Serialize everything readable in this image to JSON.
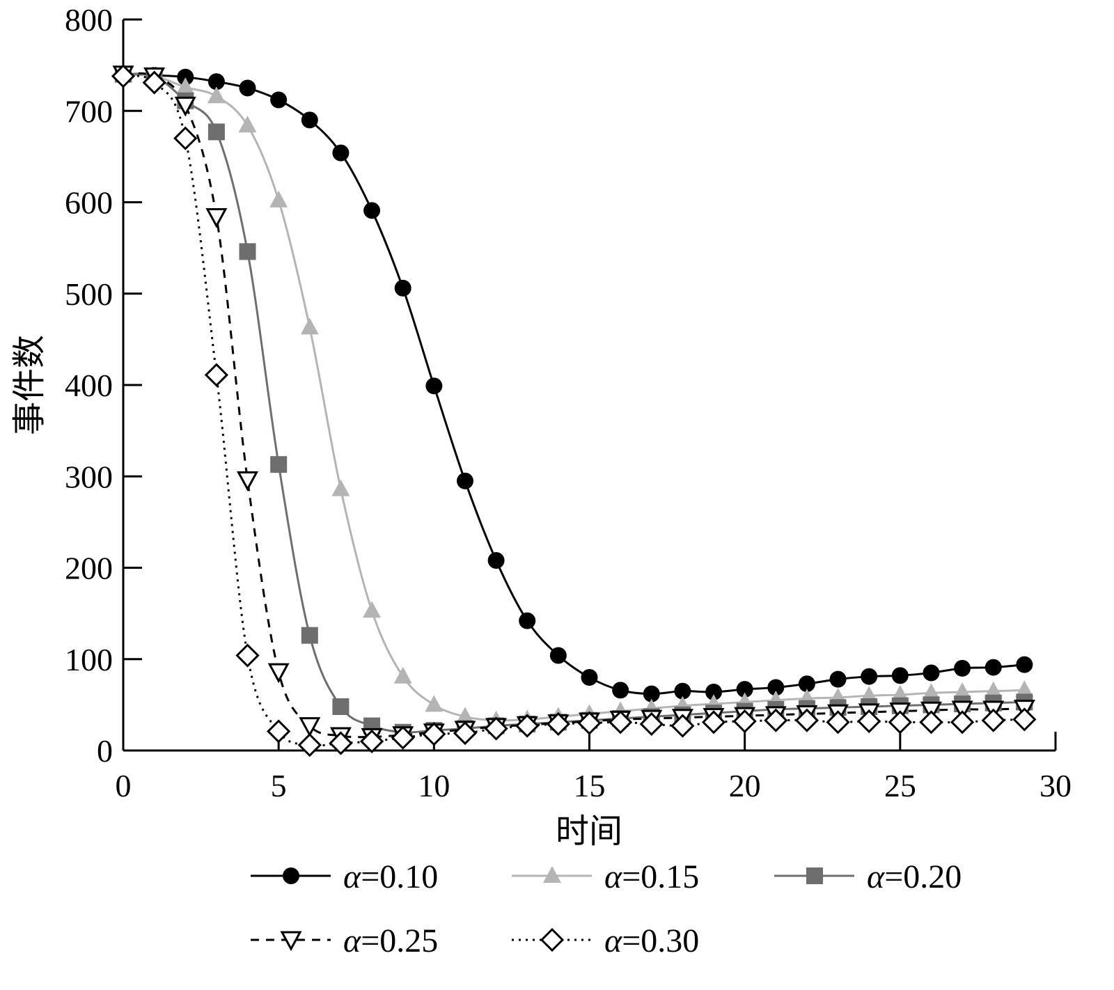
{
  "chart_data": {
    "type": "line",
    "title": "",
    "xlabel": "时间",
    "ylabel": "事件数",
    "xlim": [
      0,
      30
    ],
    "ylim": [
      0,
      800
    ],
    "xticks": [
      0,
      5,
      10,
      15,
      20,
      25,
      30
    ],
    "yticks": [
      0,
      100,
      200,
      300,
      400,
      500,
      600,
      700,
      800
    ],
    "grid": false,
    "legend_position": "bottom",
    "x": [
      0,
      1,
      2,
      3,
      4,
      5,
      6,
      7,
      8,
      9,
      10,
      11,
      12,
      13,
      14,
      15,
      16,
      17,
      18,
      19,
      20,
      21,
      22,
      23,
      24,
      25,
      26,
      27,
      28,
      29
    ],
    "series": [
      {
        "name": "α=0.10",
        "alpha_symbol": "α",
        "alpha_value": "=0.10",
        "color": "#000000",
        "marker": "circle",
        "line": "solid",
        "values": [
          740,
          739,
          737,
          732,
          725,
          712,
          690,
          654,
          591,
          506,
          399,
          295,
          208,
          142,
          104,
          80,
          66,
          62,
          65,
          64,
          67,
          69,
          73,
          78,
          81,
          82,
          85,
          90,
          91,
          94
        ]
      },
      {
        "name": "α=0.15",
        "alpha_symbol": "α",
        "alpha_value": "=0.15",
        "color": "#b4b4b4",
        "marker": "triangle-up",
        "line": "solid",
        "values": [
          740,
          738,
          726,
          716,
          684,
          602,
          463,
          286,
          153,
          81,
          50,
          37,
          33,
          34,
          37,
          40,
          43,
          46,
          49,
          51,
          53,
          55,
          57,
          58,
          60,
          61,
          63,
          64,
          65,
          66
        ]
      },
      {
        "name": "α=0.20",
        "alpha_symbol": "α",
        "alpha_value": "=0.20",
        "color": "#6e6e6e",
        "marker": "square",
        "line": "solid",
        "values": [
          740,
          738,
          711,
          677,
          546,
          313,
          126,
          48,
          27,
          20,
          22,
          24,
          27,
          29,
          31,
          33,
          35,
          37,
          39,
          41,
          43,
          45,
          46,
          47,
          48,
          49,
          50,
          51,
          52,
          53
        ]
      },
      {
        "name": "α=0.25",
        "alpha_symbol": "α",
        "alpha_value": "=0.25",
        "color": "#000000",
        "marker": "triangle-down-open",
        "line": "dashed",
        "values": [
          740,
          738,
          706,
          584,
          296,
          86,
          27,
          16,
          15,
          17,
          20,
          23,
          26,
          28,
          30,
          32,
          34,
          35,
          36,
          37,
          38,
          39,
          40,
          41,
          42,
          43,
          44,
          45,
          45,
          46
        ]
      },
      {
        "name": "α=0.30",
        "alpha_symbol": "α",
        "alpha_value": "=0.30",
        "color": "#000000",
        "marker": "diamond-open",
        "line": "dotted",
        "values": [
          738,
          731,
          670,
          411,
          104,
          21,
          6,
          8,
          10,
          14,
          18,
          19,
          24,
          27,
          29,
          30,
          31,
          29,
          27,
          31,
          32,
          33,
          33,
          31,
          32,
          31,
          31,
          31,
          33,
          34
        ]
      }
    ]
  }
}
